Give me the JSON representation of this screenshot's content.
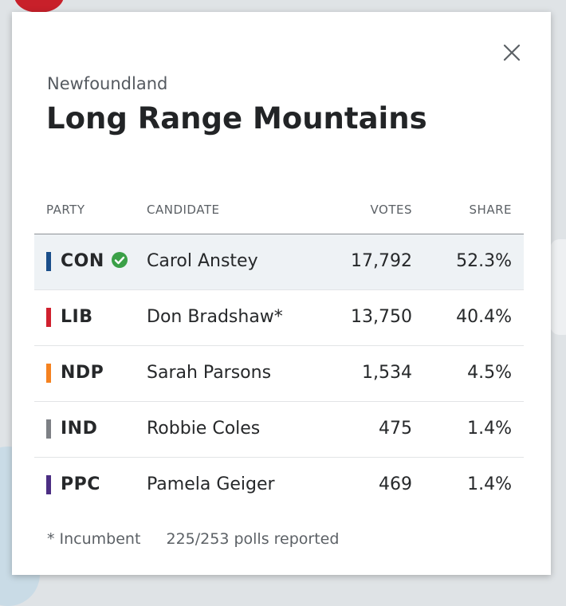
{
  "province": "Newfoundland",
  "riding": "Long Range Mountains",
  "headers": {
    "party": "PARTY",
    "candidate": "CANDIDATE",
    "votes": "VOTES",
    "share": "SHARE"
  },
  "rows": [
    {
      "party": "CON",
      "color": "#1a4e8a",
      "candidate": "Carol Anstey",
      "votes": "17,792",
      "share": "52.3%",
      "winner": true
    },
    {
      "party": "LIB",
      "color": "#d0202e",
      "candidate": "Don Bradshaw*",
      "votes": "13,750",
      "share": "40.4%",
      "winner": false
    },
    {
      "party": "NDP",
      "color": "#f58220",
      "candidate": "Sarah Parsons",
      "votes": "1,534",
      "share": "4.5%",
      "winner": false
    },
    {
      "party": "IND",
      "color": "#7d8085",
      "candidate": "Robbie Coles",
      "votes": "475",
      "share": "1.4%",
      "winner": false
    },
    {
      "party": "PPC",
      "color": "#4b2e83",
      "candidate": "Pamela Geiger",
      "votes": "469",
      "share": "1.4%",
      "winner": false
    }
  ],
  "footer": {
    "incumbent_note": "* Incumbent",
    "polls": "225/253 polls reported"
  },
  "icons": {
    "close": "close-icon",
    "winner": "check-circle-icon"
  },
  "colors": {
    "winner_check": "#3aa047",
    "winner_row_bg": "#eef2f5"
  }
}
